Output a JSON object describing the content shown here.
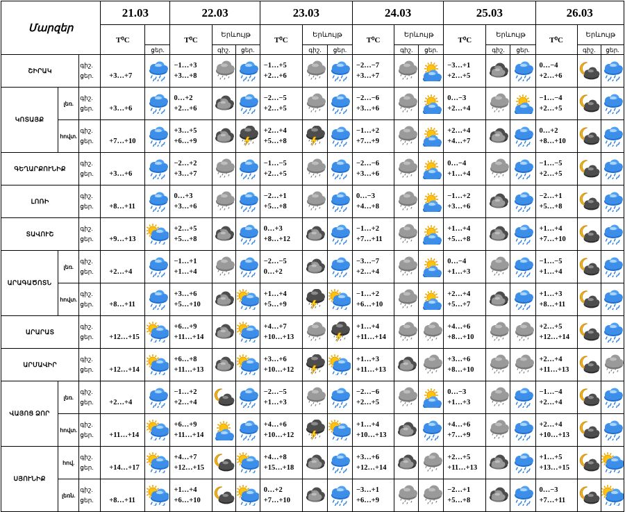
{
  "header": {
    "regions_label": "Մարզեր",
    "temp_label": "T⁰C",
    "phenomenon_label": "Երևույթ",
    "night_short": "գիշ.",
    "day_short": "ցեր.",
    "dates": [
      "21.03",
      "22.03",
      "23.03",
      "24.03",
      "25.03",
      "26.03"
    ]
  },
  "rows": [
    {
      "region": "ՇԻՐԱԿ",
      "sub": "",
      "labels": [
        "գիշ.",
        "ցեր."
      ],
      "d21": {
        "t": "+3…+7",
        "icon": "rain"
      },
      "days": [
        {
          "t1": "−1…+3",
          "t2": "+3…+8",
          "n": "cloud-rain",
          "d": "rain"
        },
        {
          "t1": "−1…+5",
          "t2": "+2…+6",
          "n": "cloud-rain",
          "d": "rain"
        },
        {
          "t1": "−2…−7",
          "t2": "+3…+7",
          "n": "cloud-rain",
          "d": "sun-cloud"
        },
        {
          "t1": "−3…+1",
          "t2": "+2…+5",
          "n": "cloud",
          "d": "rain"
        },
        {
          "t1": "0…−4",
          "t2": "+2…+6",
          "n": "moon-cloud",
          "d": "rain"
        }
      ]
    },
    {
      "region": "ԿՈՏԱՅՔ",
      "sub": "լեռ.",
      "labels": [
        "գիշ.",
        "ցեր."
      ],
      "d21": {
        "t": "+3…+6",
        "icon": "rain"
      },
      "days": [
        {
          "t1": "0…+2",
          "t2": "+2…+6",
          "n": "cloud",
          "d": "rain"
        },
        {
          "t1": "−2…−5",
          "t2": "+2…+5",
          "n": "cloud-rain",
          "d": "rain"
        },
        {
          "t1": "−2…−6",
          "t2": "+3…+6",
          "n": "cloud-rain",
          "d": "sun-cloud"
        },
        {
          "t1": "0…−3",
          "t2": "+2…+4",
          "n": "cloud-rain",
          "d": "sun-cloud"
        },
        {
          "t1": "−1…−4",
          "t2": "+2…+5",
          "n": "moon-cloud",
          "d": "rain"
        }
      ]
    },
    {
      "region": "",
      "sub": "հովտ.",
      "labels": [
        "գիշ.",
        "ցեր."
      ],
      "d21": {
        "t": "+7…+10",
        "icon": "rain"
      },
      "days": [
        {
          "t1": "+3…+5",
          "t2": "+6…+9",
          "n": "cloud",
          "d": "storm"
        },
        {
          "t1": "+2…+4",
          "t2": "+5…+8",
          "n": "storm",
          "d": "rain"
        },
        {
          "t1": "−1…+2",
          "t2": "+7…+9",
          "n": "cloud-rain",
          "d": "sun-cloud"
        },
        {
          "t1": "+2…+4",
          "t2": "+4…+7",
          "n": "cloud",
          "d": "rain"
        },
        {
          "t1": "0…+2",
          "t2": "+8…+10",
          "n": "moon-cloud",
          "d": "rain"
        }
      ]
    },
    {
      "region": "ԳԵՂԱՐՔՈՒՆԻՔ",
      "sub": "",
      "labels": [
        "գիշ.",
        "ցեր."
      ],
      "d21": {
        "t": "+3…+6",
        "icon": "rain"
      },
      "days": [
        {
          "t1": "−2…+2",
          "t2": "+3…+7",
          "n": "cloud-rain",
          "d": "rain"
        },
        {
          "t1": "−1…−5",
          "t2": "+2…+5",
          "n": "cloud-rain",
          "d": "rain"
        },
        {
          "t1": "−2…−6",
          "t2": "+3…+6",
          "n": "cloud-rain",
          "d": "sun-cloud"
        },
        {
          "t1": "0…−4",
          "t2": "+1…+4",
          "n": "cloud-rain",
          "d": "rain"
        },
        {
          "t1": "−1…−5",
          "t2": "+2…+5",
          "n": "moon-cloud",
          "d": "rain"
        }
      ]
    },
    {
      "region": "ԼՈՌԻ",
      "sub": "",
      "labels": [
        "գիշ.",
        "ցեր."
      ],
      "d21": {
        "t": "+8…+11",
        "icon": "rain"
      },
      "days": [
        {
          "t1": "0…+3",
          "t2": "+3…+6",
          "n": "cloud-rain",
          "d": "rain"
        },
        {
          "t1": "−2…+1",
          "t2": "+5…+8",
          "n": "cloud-rain",
          "d": "rain"
        },
        {
          "t1": "0…−3",
          "t2": "+4…+8",
          "n": "cloud-rain",
          "d": "sun-cloud"
        },
        {
          "t1": "−1…+2",
          "t2": "+3…+6",
          "n": "cloud",
          "d": "rain"
        },
        {
          "t1": "−2…+1",
          "t2": "+5…+8",
          "n": "moon-cloud",
          "d": "rain"
        }
      ]
    },
    {
      "region": "ՏԱՎՈՒՇ",
      "sub": "",
      "labels": [
        "գիշ.",
        "ցեր."
      ],
      "d21": {
        "t": "+9…+13",
        "icon": "sun-rain"
      },
      "days": [
        {
          "t1": "+2…+5",
          "t2": "+5…+8",
          "n": "cloud",
          "d": "rain"
        },
        {
          "t1": "0…+3",
          "t2": "+8…+12",
          "n": "cloud",
          "d": "rain"
        },
        {
          "t1": "−1…+2",
          "t2": "+7…+11",
          "n": "cloud-rain",
          "d": "sun-cloud"
        },
        {
          "t1": "+1…+4",
          "t2": "+5…+8",
          "n": "cloud",
          "d": "rain"
        },
        {
          "t1": "+1…+4",
          "t2": "+7…+10",
          "n": "moon-cloud",
          "d": "rain"
        }
      ]
    },
    {
      "region": "ԱՐԱԳԱԾՈՏՆ",
      "sub": "լեռ.",
      "labels": [
        "գիշ.",
        "ցեր."
      ],
      "d21": {
        "t": "+2…+4",
        "icon": "rain"
      },
      "days": [
        {
          "t1": "−1…+1",
          "t2": "+1…+4",
          "n": "cloud-rain",
          "d": "rain"
        },
        {
          "t1": "−2…−5",
          "t2": "0…+2",
          "n": "cloud",
          "d": "rain"
        },
        {
          "t1": "−3…−7",
          "t2": "+2…+4",
          "n": "cloud-rain",
          "d": "sun-cloud"
        },
        {
          "t1": "0…−4",
          "t2": "+1…+3",
          "n": "cloud-rain",
          "d": "rain"
        },
        {
          "t1": "−1…−5",
          "t2": "+1…+4",
          "n": "moon-cloud",
          "d": "rain"
        }
      ]
    },
    {
      "region": "",
      "sub": "հովտ.",
      "labels": [
        "գիշ.",
        "ցեր."
      ],
      "d21": {
        "t": "+8…+11",
        "icon": "rain"
      },
      "days": [
        {
          "t1": "+3…+6",
          "t2": "+5…+10",
          "n": "cloud",
          "d": "sun-rain"
        },
        {
          "t1": "+1…+4",
          "t2": "+5…+9",
          "n": "storm",
          "d": "sun-rain"
        },
        {
          "t1": "−1…+2",
          "t2": "+6…+10",
          "n": "cloud-rain",
          "d": "sun-cloud"
        },
        {
          "t1": "+2…+4",
          "t2": "+5…+7",
          "n": "cloud",
          "d": "rain"
        },
        {
          "t1": "+1…+3",
          "t2": "+8…+11",
          "n": "moon-cloud",
          "d": "rain"
        }
      ]
    },
    {
      "region": "ԱՐԱՐԱՏ",
      "sub": "",
      "labels": [
        "գիշ.",
        "ցեր."
      ],
      "d21": {
        "t": "+12…+15",
        "icon": "sun-rain"
      },
      "days": [
        {
          "t1": "+6…+9",
          "t2": "+11…+14",
          "n": "cloud",
          "d": "sun-rain"
        },
        {
          "t1": "+4…+7",
          "t2": "+10…+13",
          "n": "cloud-rain",
          "d": "storm"
        },
        {
          "t1": "+1…+4",
          "t2": "+11…+14",
          "n": "cloud-rain",
          "d": "cloud-rain"
        },
        {
          "t1": "+4…+6",
          "t2": "+8…+10",
          "n": "cloud-rain",
          "d": "cloud-rain"
        },
        {
          "t1": "+2…+5",
          "t2": "+12…+14",
          "n": "moon-cloud",
          "d": "rain"
        }
      ]
    },
    {
      "region": "ԱՐՄԱՎԻՐ",
      "sub": "",
      "labels": [
        "գիշ.",
        "ցեր."
      ],
      "d21": {
        "t": "+12…+14",
        "icon": "sun-rain"
      },
      "days": [
        {
          "t1": "+6…+8",
          "t2": "+11…+13",
          "n": "cloud",
          "d": "sun-rain"
        },
        {
          "t1": "+3…+6",
          "t2": "+10…+12",
          "n": "storm",
          "d": "sun-rain"
        },
        {
          "t1": "+1…+3",
          "t2": "+11…+13",
          "n": "cloud",
          "d": "cloud-rain"
        },
        {
          "t1": "+3…+6",
          "t2": "+8…+10",
          "n": "cloud-rain",
          "d": "cloud-rain"
        },
        {
          "t1": "+2…+4",
          "t2": "+11…+13",
          "n": "moon-cloud",
          "d": "cloud-rain"
        }
      ]
    },
    {
      "region": "ՎԱՅՈՑ ՁՈՐ",
      "sub": "լեռ.",
      "labels": [
        "գիշ.",
        "ցեր."
      ],
      "d21": {
        "t": "+2…+4",
        "icon": "rain"
      },
      "days": [
        {
          "t1": "−1…+2",
          "t2": "+2…+4",
          "n": "moon-cloud",
          "d": "rain"
        },
        {
          "t1": "−2…−5",
          "t2": "+1…+3",
          "n": "cloud-rain",
          "d": "rain"
        },
        {
          "t1": "−2…−6",
          "t2": "+2…+5",
          "n": "cloud-rain",
          "d": "sun-cloud"
        },
        {
          "t1": "0…−3",
          "t2": "+1…+3",
          "n": "cloud-rain",
          "d": "rain"
        },
        {
          "t1": "−1…−4",
          "t2": "+2…+4",
          "n": "moon-cloud",
          "d": "rain"
        }
      ]
    },
    {
      "region": "",
      "sub": "հովտ.",
      "labels": [
        "գիշ.",
        "ցեր."
      ],
      "d21": {
        "t": "+11…+14",
        "icon": "sun-rain"
      },
      "days": [
        {
          "t1": "+6…+9",
          "t2": "+11…+14",
          "n": "sun-cloud",
          "d": "rain"
        },
        {
          "t1": "+4…+6",
          "t2": "+10…+12",
          "n": "storm",
          "d": "sun-rain"
        },
        {
          "t1": "+1…+4",
          "t2": "+10…+13",
          "n": "cloud",
          "d": "rain"
        },
        {
          "t1": "+4…+6",
          "t2": "+7…+9",
          "n": "cloud-rain",
          "d": "rain"
        },
        {
          "t1": "+2…+4",
          "t2": "+10…+13",
          "n": "moon-cloud",
          "d": "rain"
        }
      ]
    },
    {
      "region": "ՍՅՈՒՆԻՔ",
      "sub": "հով.",
      "labels": [
        "գիշ.",
        "ցեր."
      ],
      "d21": {
        "t": "+14…+17",
        "icon": "sun-rain"
      },
      "days": [
        {
          "t1": "+4…+7",
          "t2": "+12…+15",
          "n": "moon-cloud",
          "d": "sun-rain"
        },
        {
          "t1": "+4…+8",
          "t2": "+15…+18",
          "n": "cloud",
          "d": "rain"
        },
        {
          "t1": "+3…+6",
          "t2": "+12…+14",
          "n": "cloud",
          "d": "cloud-rain"
        },
        {
          "t1": "+2…+5",
          "t2": "+11…+13",
          "n": "cloud",
          "d": "rain"
        },
        {
          "t1": "+1…+5",
          "t2": "+13…+15",
          "n": "moon-cloud",
          "d": "sun-rain"
        }
      ]
    },
    {
      "region": "",
      "sub": "լեռն.",
      "labels": [
        "գիշ.",
        "ցեր."
      ],
      "d21": {
        "t": "+8…+11",
        "icon": "sun-rain"
      },
      "days": [
        {
          "t1": "+1…+4",
          "t2": "+6…+10",
          "n": "moon-cloud",
          "d": "sun-rain"
        },
        {
          "t1": "0…+2",
          "t2": "+7…+10",
          "n": "cloud",
          "d": "rain"
        },
        {
          "t1": "−3…+1",
          "t2": "+6…+9",
          "n": "cloud-rain",
          "d": "cloud-rain"
        },
        {
          "t1": "−2…+1",
          "t2": "+5…+8",
          "n": "cloud",
          "d": "rain"
        },
        {
          "t1": "0…−3",
          "t2": "+7…+11",
          "n": "moon-cloud",
          "d": "sun-rain"
        }
      ]
    }
  ]
}
